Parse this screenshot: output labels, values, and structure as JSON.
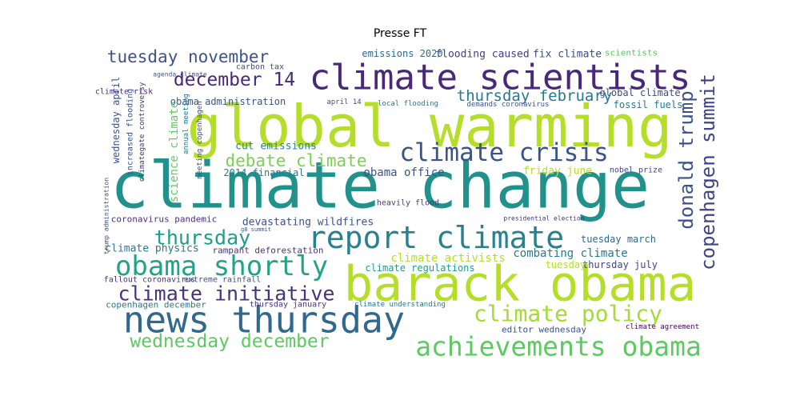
{
  "title": "Presse FT",
  "words": [
    {
      "text": "climate change",
      "color": "#21918c"
    },
    {
      "text": "global warming",
      "color": "#b5de2b"
    },
    {
      "text": "barack obama",
      "color": "#b5de2b"
    },
    {
      "text": "climate scientists",
      "color": "#482878"
    },
    {
      "text": "news thursday",
      "color": "#31688e"
    },
    {
      "text": "report climate",
      "color": "#26828e"
    },
    {
      "text": "climate policy",
      "color": "#a5db36"
    },
    {
      "text": "achievements obama",
      "color": "#5ec962"
    },
    {
      "text": "obama shortly",
      "color": "#20a486"
    },
    {
      "text": "climate crisis",
      "color": "#3b528b"
    },
    {
      "text": "climate initiative",
      "color": "#46327e"
    },
    {
      "text": "wednesday december",
      "color": "#5ec962"
    },
    {
      "text": "debate climate",
      "color": "#7ad151"
    },
    {
      "text": "tuesday november",
      "color": "#3b528b"
    },
    {
      "text": "december 14",
      "color": "#482878"
    },
    {
      "text": "thursday february",
      "color": "#2a788e"
    },
    {
      "text": "thursday",
      "color": "#1f9e89"
    },
    {
      "text": "donald trump",
      "color": "#3b528b"
    },
    {
      "text": "copenhagen summit",
      "color": "#414487"
    },
    {
      "text": "fix climate",
      "color": "#3e4a89"
    },
    {
      "text": "flooding caused",
      "color": "#433e85"
    },
    {
      "text": "emissions 2020",
      "color": "#31688e"
    },
    {
      "text": "scientists",
      "color": "#5ec962"
    },
    {
      "text": "obama administration",
      "color": "#3b528b"
    },
    {
      "text": "global climate",
      "color": "#3e4a89"
    },
    {
      "text": "fossil fuels",
      "color": "#2a788e"
    },
    {
      "text": "cut emissions",
      "color": "#25858e"
    },
    {
      "text": "2014 financial",
      "color": "#2a788e"
    },
    {
      "text": "obama office",
      "color": "#3b528b"
    },
    {
      "text": "friday june",
      "color": "#b5de2b"
    },
    {
      "text": "nobel prize",
      "color": "#414487"
    },
    {
      "text": "devastating wildfires",
      "color": "#3b528b"
    },
    {
      "text": "coronavirus pandemic",
      "color": "#46327e"
    },
    {
      "text": "heavily flood",
      "color": "#443a83"
    },
    {
      "text": "tuesday march",
      "color": "#31688e"
    },
    {
      "text": "combating climate",
      "color": "#2a788e"
    },
    {
      "text": "thursday july",
      "color": "#414487"
    },
    {
      "text": "tuesday",
      "color": "#b5de2b"
    },
    {
      "text": "climate activists",
      "color": "#b5de2b"
    },
    {
      "text": "climate regulations",
      "color": "#1f9e89"
    },
    {
      "text": "climate physics",
      "color": "#2a788e"
    },
    {
      "text": "rampant deforestation",
      "color": "#46327e"
    },
    {
      "text": "fallout coronavirus",
      "color": "#46327e"
    },
    {
      "text": "extreme rainfall",
      "color": "#3b528b"
    },
    {
      "text": "copenhagen december",
      "color": "#2a788e"
    },
    {
      "text": "thursday january",
      "color": "#46327e"
    },
    {
      "text": "editor wednesday",
      "color": "#3b528b"
    },
    {
      "text": "climate agreement",
      "color": "#440154"
    },
    {
      "text": "science climate",
      "color": "#5ec962"
    },
    {
      "text": "wednesday april",
      "color": "#3b528b"
    },
    {
      "text": "increased flooding",
      "color": "#3b528b"
    },
    {
      "text": "climategate controversy",
      "color": "#46327e"
    },
    {
      "text": "annual meeting",
      "color": "#2a788e"
    },
    {
      "text": "meeting copenhagen",
      "color": "#3b528b"
    },
    {
      "text": "climate risk",
      "color": "#46327e"
    },
    {
      "text": "carbon tax",
      "color": "#3e4a89"
    },
    {
      "text": "agenda climate",
      "color": "#3b528b"
    },
    {
      "text": "april 14",
      "color": "#3b528b"
    },
    {
      "text": "local flooding",
      "color": "#2a788e"
    },
    {
      "text": "demands coronavirus",
      "color": "#3b528b"
    },
    {
      "text": "trump administration",
      "color": "#3b528b"
    },
    {
      "text": "presidential election",
      "color": "#46327e"
    },
    {
      "text": "climate understanding",
      "color": "#2a788e"
    },
    {
      "text": "g8 summit",
      "color": "#3b528b"
    }
  ]
}
